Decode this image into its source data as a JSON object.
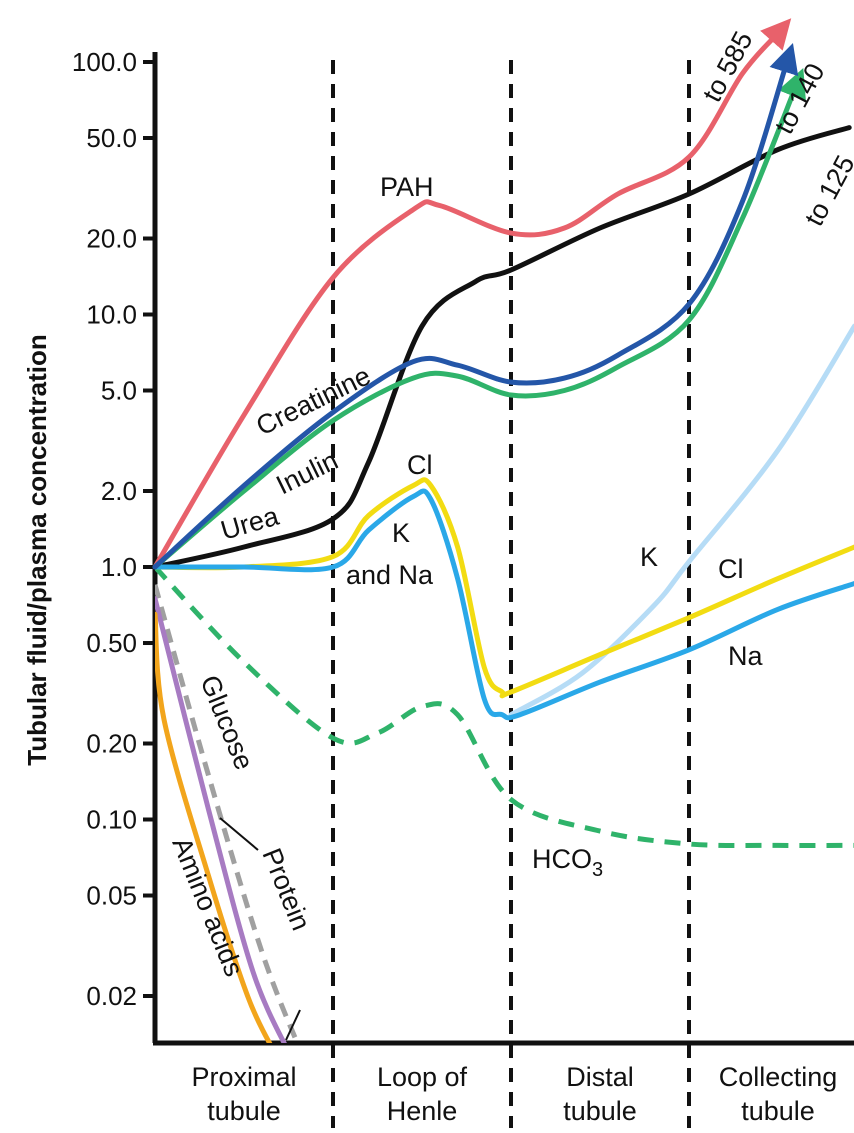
{
  "chart_data": {
    "type": "line",
    "title": "",
    "ylabel": "Tubular fluid/plasma concentration",
    "xlabel": "",
    "yscale": "log",
    "ylim": [
      0.012,
      110
    ],
    "yticks": [
      {
        "value": 100,
        "label": "100.0"
      },
      {
        "value": 50,
        "label": "50.0"
      },
      {
        "value": 20,
        "label": "20.0"
      },
      {
        "value": 10,
        "label": "10.0"
      },
      {
        "value": 5,
        "label": "5.0"
      },
      {
        "value": 2,
        "label": "2.0"
      },
      {
        "value": 1,
        "label": "1.0"
      },
      {
        "value": 0.5,
        "label": "0.50"
      },
      {
        "value": 0.2,
        "label": "0.20"
      },
      {
        "value": 0.1,
        "label": "0.10"
      },
      {
        "value": 0.05,
        "label": "0.05"
      },
      {
        "value": 0.02,
        "label": "0.02"
      }
    ],
    "xlim": [
      0,
      4
    ],
    "segments": [
      {
        "line1": "Proximal",
        "line2": "tubule"
      },
      {
        "line1": "Loop of",
        "line2": "Henle"
      },
      {
        "line1": "Distal",
        "line2": "tubule"
      },
      {
        "line1": "Collecting",
        "line2": "tubule"
      }
    ],
    "boundaries": [
      1,
      2,
      3
    ],
    "grid": false,
    "colors": {
      "PAH": "#e8616b",
      "Creatinine": "#2456a8",
      "Inulin": "#2fb36a",
      "Urea": "#111111",
      "Cl": "#f2dc12",
      "Na": "#2aa8e8",
      "K": "#b6dcf6",
      "HCO3": "#2fb36a",
      "Glucose": "#a0a0a0",
      "Protein": "#a77bc2",
      "Amino acids": "#f2a51c"
    },
    "series": [
      {
        "key": "PAH",
        "label": "PAH",
        "arrow": true,
        "end_label": "to 585",
        "points": [
          [
            0,
            1
          ],
          [
            0.5,
            4
          ],
          [
            1,
            14
          ],
          [
            1.45,
            26
          ],
          [
            1.6,
            27
          ],
          [
            2,
            21
          ],
          [
            2.3,
            22
          ],
          [
            2.6,
            30
          ],
          [
            3,
            42
          ],
          [
            3.3,
            90
          ],
          [
            3.5,
            130
          ]
        ]
      },
      {
        "key": "Creatinine",
        "label": "Creatinine",
        "arrow": true,
        "end_label": "to 140",
        "points": [
          [
            0,
            1
          ],
          [
            0.5,
            2.1
          ],
          [
            1,
            4.1
          ],
          [
            1.45,
            6.5
          ],
          [
            1.7,
            6.3
          ],
          [
            2,
            5.4
          ],
          [
            2.3,
            5.6
          ],
          [
            2.6,
            6.9
          ],
          [
            3,
            11
          ],
          [
            3.3,
            28
          ],
          [
            3.55,
            100
          ]
        ]
      },
      {
        "key": "Inulin",
        "label": "Inulin",
        "arrow": true,
        "end_label": "to 125",
        "points": [
          [
            0,
            1
          ],
          [
            0.5,
            2
          ],
          [
            1,
            3.8
          ],
          [
            1.45,
            5.6
          ],
          [
            1.7,
            5.7
          ],
          [
            2,
            4.8
          ],
          [
            2.3,
            5
          ],
          [
            2.6,
            6.2
          ],
          [
            3,
            9.5
          ],
          [
            3.3,
            24
          ],
          [
            3.6,
            80
          ]
        ]
      },
      {
        "key": "Urea",
        "label": "Urea",
        "arrow": false,
        "points": [
          [
            0,
            1
          ],
          [
            0.5,
            1.2
          ],
          [
            1,
            1.55
          ],
          [
            1.2,
            2.6
          ],
          [
            1.5,
            9
          ],
          [
            1.8,
            13.5
          ],
          [
            2,
            15
          ],
          [
            2.5,
            22
          ],
          [
            3,
            30
          ],
          [
            3.5,
            45
          ],
          [
            3.9,
            55
          ]
        ]
      },
      {
        "key": "Cl",
        "label": "Cl",
        "arrow": false,
        "points": [
          [
            0,
            1
          ],
          [
            0.5,
            1
          ],
          [
            1,
            1.1
          ],
          [
            1.2,
            1.6
          ],
          [
            1.45,
            2.1
          ],
          [
            1.55,
            2.1
          ],
          [
            1.7,
            1.2
          ],
          [
            1.85,
            0.4
          ],
          [
            1.95,
            0.32
          ],
          [
            2,
            0.32
          ],
          [
            2.5,
            0.45
          ],
          [
            3,
            0.63
          ],
          [
            3.5,
            0.9
          ],
          [
            3.93,
            1.2
          ]
        ]
      },
      {
        "key": "Na",
        "label": "K\nand Na",
        "arrow": false,
        "points": [
          [
            0,
            1
          ],
          [
            0.5,
            1
          ],
          [
            1,
            1
          ],
          [
            1.2,
            1.4
          ],
          [
            1.45,
            1.9
          ],
          [
            1.55,
            1.85
          ],
          [
            1.7,
            0.9
          ],
          [
            1.85,
            0.3
          ],
          [
            1.95,
            0.26
          ],
          [
            2.05,
            0.26
          ],
          [
            2.5,
            0.35
          ],
          [
            3,
            0.47
          ],
          [
            3.5,
            0.68
          ],
          [
            3.93,
            0.86
          ]
        ]
      },
      {
        "key": "K",
        "label": "K",
        "arrow": false,
        "points": [
          [
            2,
            0.26
          ],
          [
            2.4,
            0.38
          ],
          [
            2.8,
            0.7
          ],
          [
            3,
            1.05
          ],
          [
            3.5,
            2.9
          ],
          [
            3.93,
            9
          ]
        ]
      },
      {
        "key": "HCO3",
        "label": "HCO3",
        "arrow": false,
        "dashed": true,
        "points": [
          [
            0,
            1
          ],
          [
            0.5,
            0.42
          ],
          [
            1,
            0.21
          ],
          [
            1.25,
            0.22
          ],
          [
            1.5,
            0.28
          ],
          [
            1.7,
            0.26
          ],
          [
            2,
            0.12
          ],
          [
            2.5,
            0.09
          ],
          [
            3,
            0.08
          ],
          [
            3.5,
            0.079
          ],
          [
            3.93,
            0.079
          ]
        ]
      },
      {
        "key": "Glucose",
        "label": "Glucose",
        "arrow": false,
        "dashed": true,
        "points": [
          [
            0,
            0.85
          ],
          [
            0.3,
            0.15
          ],
          [
            0.6,
            0.03
          ],
          [
            0.82,
            0.012
          ]
        ]
      },
      {
        "key": "Protein",
        "label": "Protein",
        "arrow": false,
        "points": [
          [
            0,
            0.75
          ],
          [
            0.3,
            0.11
          ],
          [
            0.55,
            0.025
          ],
          [
            0.75,
            0.012
          ]
        ]
      },
      {
        "key": "Amino acids",
        "label": "Amino acids",
        "arrow": false,
        "points": [
          [
            0,
            0.65
          ],
          [
            0.05,
            0.25
          ],
          [
            0.3,
            0.06
          ],
          [
            0.52,
            0.02
          ],
          [
            0.67,
            0.012
          ]
        ]
      }
    ]
  }
}
